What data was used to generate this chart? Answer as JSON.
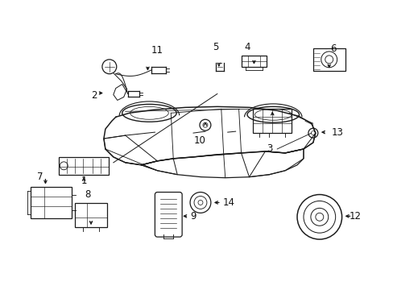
{
  "bg_color": "#ffffff",
  "fig_width": 4.89,
  "fig_height": 3.6,
  "dpi": 100,
  "line_color": "#1a1a1a",
  "line_width": 0.9
}
